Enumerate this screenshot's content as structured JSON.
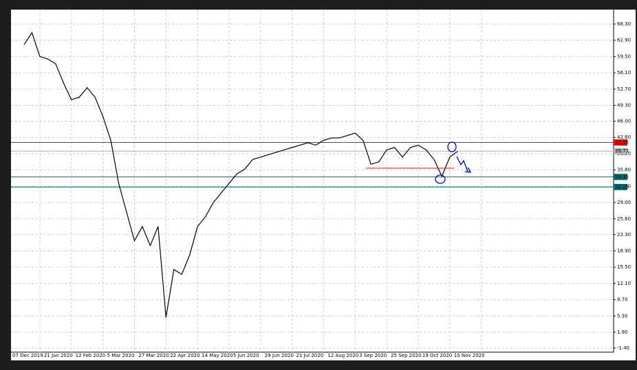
{
  "chart_data": {
    "type": "line",
    "categories": [
      "07 Dec 2019",
      null,
      null,
      null,
      "21 Jan 2020",
      null,
      null,
      null,
      "12 Feb 2020",
      null,
      null,
      null,
      "5 Mar 2020",
      null,
      null,
      null,
      "27 Mar 2020",
      null,
      null,
      null,
      "22 Apr 2020",
      null,
      null,
      null,
      "14 May 2020",
      null,
      null,
      null,
      "5 Jun 2020",
      null,
      null,
      null,
      "29 Jun 2020",
      null,
      null,
      null,
      "21 Jul 2020",
      null,
      null,
      null,
      "12 Aug 2020",
      null,
      null,
      null,
      "3 Sep 2020",
      null,
      null,
      null,
      "25 Sep 2020",
      null,
      null,
      null,
      "19 Oct 2020",
      null,
      null,
      null,
      "10 Nov 2020"
    ],
    "values": [
      62,
      64.5,
      59.5,
      59,
      58,
      54,
      50.5,
      51,
      53,
      51,
      47,
      42,
      33,
      27,
      21,
      24,
      20,
      24,
      5,
      15,
      14,
      18,
      24,
      26,
      29,
      31,
      33,
      35,
      36,
      38,
      38.5,
      39,
      39.5,
      40,
      40.5,
      41,
      41.5,
      41,
      42,
      42.5,
      42.5,
      43,
      43.5,
      42,
      37,
      37.5,
      40,
      40.5,
      38.5,
      40.5,
      41,
      40,
      38,
      34.5,
      38.5,
      39.7,
      null
    ],
    "color": "#000000",
    "ylim": [
      -1.4,
      66.3
    ],
    "yticks": [
      {
        "value": 66.3,
        "label": "66.30"
      },
      {
        "value": 62.9,
        "label": "62.90"
      },
      {
        "value": 59.5,
        "label": "59.50"
      },
      {
        "value": 56.1,
        "label": "56.10"
      },
      {
        "value": 52.7,
        "label": "52.70"
      },
      {
        "value": 49.3,
        "label": "49.30"
      },
      {
        "value": 46,
        "label": "46.00"
      },
      {
        "value": 42.6,
        "label": "42.60"
      },
      {
        "value": 39.2,
        "label": "39.20"
      },
      {
        "value": 35.8,
        "label": "35.80"
      },
      {
        "value": 32.4,
        "label": "32.40"
      },
      {
        "value": 29,
        "label": "29.00"
      },
      {
        "value": 25.6,
        "label": "25.60"
      },
      {
        "value": 22.3,
        "label": "22.30"
      },
      {
        "value": 18.9,
        "label": "18.90"
      },
      {
        "value": 15.5,
        "label": "15.50"
      },
      {
        "value": 12.1,
        "label": "12.10"
      },
      {
        "value": 8.7,
        "label": "8.70"
      },
      {
        "value": 5.3,
        "label": "5.30"
      },
      {
        "value": 1.9,
        "label": "1.90"
      },
      {
        "value": -1.4,
        "label": "-1.40"
      }
    ],
    "levels": [
      {
        "value": 41.55,
        "label": "41.55",
        "color": "#ff0000"
      },
      {
        "value": 39.73,
        "label": "39.73",
        "color": "#b0b0b0"
      },
      {
        "value": 34.35,
        "label": "34.35",
        "color": "#006b6b"
      },
      {
        "value": 32.25,
        "label": "32.25",
        "color": "#006b6b"
      }
    ],
    "grid": true
  }
}
